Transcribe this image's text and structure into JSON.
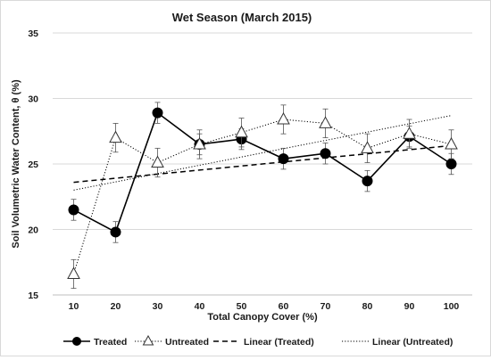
{
  "chart_data": {
    "type": "line",
    "title": "Wet Season (March 2015)",
    "xlabel": "Total Canopy Cover (%)",
    "ylabel": "Soil Volumetric Water Content, θ (%)",
    "x": [
      10,
      20,
      30,
      40,
      50,
      60,
      70,
      80,
      90,
      100
    ],
    "xlim": [
      5,
      105
    ],
    "ylim": [
      15,
      35
    ],
    "y_ticks": [
      15,
      20,
      25,
      30,
      35
    ],
    "grid": "horizontal",
    "legend_position": "bottom",
    "series": [
      {
        "name": "Treated",
        "values": [
          21.5,
          19.8,
          28.9,
          26.5,
          26.9,
          25.4,
          25.8,
          23.7,
          27.1,
          25.0
        ],
        "error": [
          0.8,
          0.8,
          0.8,
          0.8,
          0.8,
          0.8,
          0.8,
          0.8,
          0.8,
          0.8
        ],
        "marker": "filled-circle",
        "line_style": "solid",
        "color": "#000000"
      },
      {
        "name": "Untreated",
        "values": [
          16.6,
          27.0,
          25.1,
          26.5,
          27.4,
          28.4,
          28.1,
          26.2,
          27.3,
          26.5
        ],
        "error": [
          1.1,
          1.1,
          1.1,
          1.1,
          1.1,
          1.1,
          1.1,
          1.1,
          1.1,
          1.1
        ],
        "marker": "open-triangle",
        "line_style": "dotted",
        "color": "#000000"
      }
    ],
    "trendlines": [
      {
        "name": "Linear (Treated)",
        "y_at_x10": 23.6,
        "y_at_x100": 26.4,
        "line_style": "dashed",
        "color": "#000000"
      },
      {
        "name": "Linear (Untreated)",
        "y_at_x10": 23.0,
        "y_at_x100": 28.7,
        "line_style": "dotted",
        "color": "#000000"
      }
    ]
  }
}
